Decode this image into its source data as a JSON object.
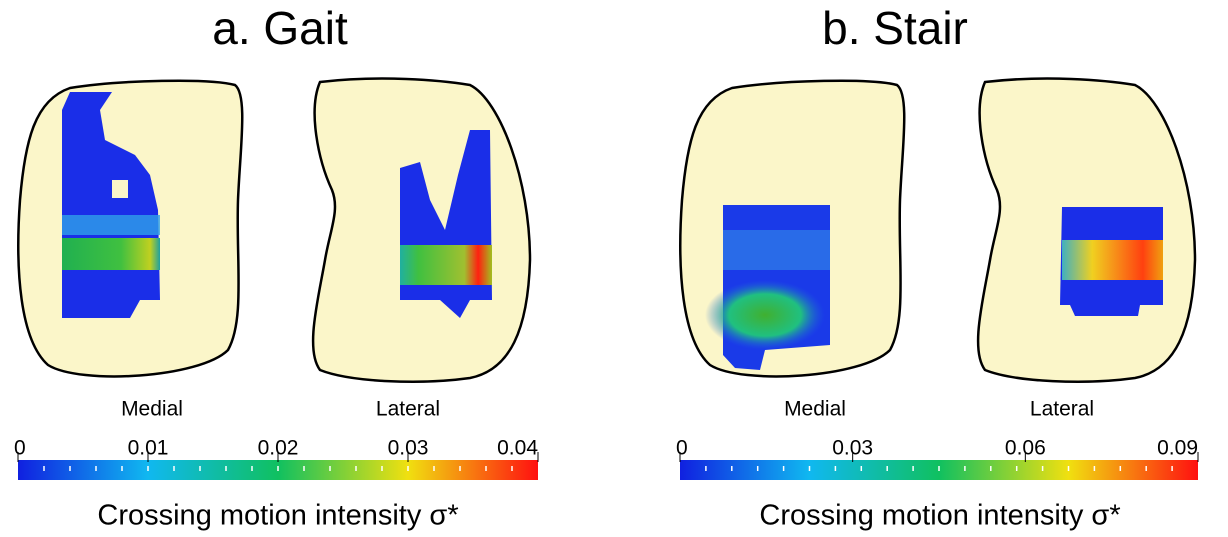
{
  "panels": [
    {
      "title": "a. Gait",
      "labels": [
        "Medial",
        "Lateral"
      ],
      "colorbar": {
        "lim": [
          0,
          0.04
        ],
        "ticks": [
          0,
          0.01,
          0.02,
          0.03,
          0.04
        ],
        "label": "Crossing motion intensity σ*"
      }
    },
    {
      "title": "b. Stair",
      "labels": [
        "Medial",
        "Lateral"
      ],
      "colorbar": {
        "lim": [
          0,
          0.09
        ],
        "ticks": [
          0,
          0.03,
          0.06,
          0.09
        ],
        "label": "Crossing motion intensity σ*"
      }
    }
  ]
}
